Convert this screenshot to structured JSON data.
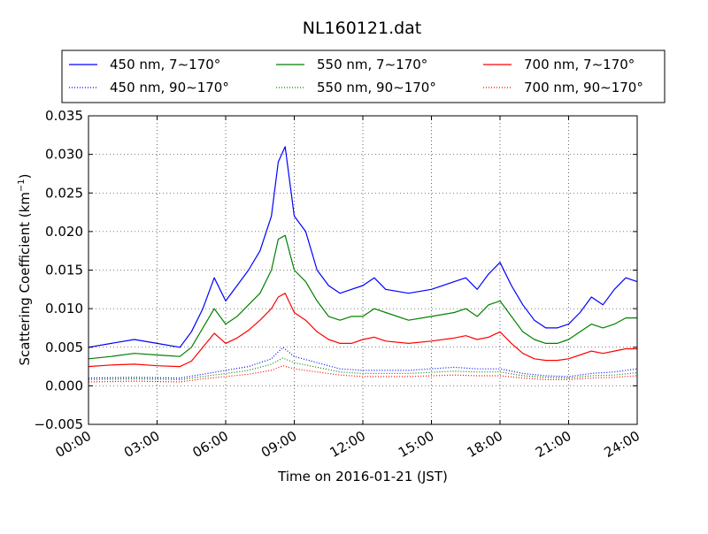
{
  "chart_data": {
    "type": "line",
    "title": "NL160121.dat",
    "xlabel": "Time on 2016-01-21 (JST)",
    "ylabel_main": "Scattering Coefficient (km",
    "ylabel_sup": "−1",
    "ylabel_close": ")",
    "xlim": [
      "2016-01-21 00:00",
      "2016-01-22 00:00"
    ],
    "ylim": [
      -0.005,
      0.035
    ],
    "grid": true,
    "legend_position": "top",
    "x_ticks": [
      {
        "hours": 0,
        "label": "00:00"
      },
      {
        "hours": 3,
        "label": "03:00"
      },
      {
        "hours": 6,
        "label": "06:00"
      },
      {
        "hours": 9,
        "label": "09:00"
      },
      {
        "hours": 12,
        "label": "12:00"
      },
      {
        "hours": 15,
        "label": "15:00"
      },
      {
        "hours": 18,
        "label": "18:00"
      },
      {
        "hours": 21,
        "label": "21:00"
      },
      {
        "hours": 24,
        "label": "24:00"
      }
    ],
    "y_ticks": [
      {
        "value": -0.005,
        "label": "−0.005"
      },
      {
        "value": 0.0,
        "label": "0.000"
      },
      {
        "value": 0.005,
        "label": "0.005"
      },
      {
        "value": 0.01,
        "label": "0.010"
      },
      {
        "value": 0.015,
        "label": "0.015"
      },
      {
        "value": 0.02,
        "label": "0.020"
      },
      {
        "value": 0.025,
        "label": "0.025"
      },
      {
        "value": 0.03,
        "label": "0.030"
      },
      {
        "value": 0.035,
        "label": "0.035"
      }
    ],
    "series": [
      {
        "name": "450 nm, 7∼170°",
        "color": "#0000ff",
        "style": "solid",
        "x": [
          0,
          1,
          2,
          3,
          4,
          4.5,
          5,
          5.5,
          6,
          6.5,
          7,
          7.5,
          8,
          8.3,
          8.6,
          9,
          9.5,
          10,
          10.5,
          11,
          11.5,
          12,
          12.5,
          13,
          14,
          15,
          16,
          16.5,
          17,
          17.5,
          18,
          18.5,
          19,
          19.5,
          20,
          20.5,
          21,
          21.5,
          22,
          22.5,
          23,
          23.5,
          24
        ],
        "y": [
          0.005,
          0.0055,
          0.006,
          0.0055,
          0.005,
          0.007,
          0.01,
          0.014,
          0.011,
          0.013,
          0.015,
          0.0175,
          0.022,
          0.029,
          0.031,
          0.022,
          0.02,
          0.015,
          0.013,
          0.012,
          0.0125,
          0.013,
          0.014,
          0.0125,
          0.012,
          0.0125,
          0.0135,
          0.014,
          0.0125,
          0.0145,
          0.016,
          0.013,
          0.0105,
          0.0085,
          0.0075,
          0.0075,
          0.008,
          0.0095,
          0.0115,
          0.0105,
          0.0125,
          0.014,
          0.0135
        ]
      },
      {
        "name": "550 nm, 7∼170°",
        "color": "#008000",
        "style": "solid",
        "x": [
          0,
          1,
          2,
          3,
          4,
          4.5,
          5,
          5.5,
          6,
          6.5,
          7,
          7.5,
          8,
          8.3,
          8.6,
          9,
          9.5,
          10,
          10.5,
          11,
          11.5,
          12,
          12.5,
          13,
          14,
          15,
          16,
          16.5,
          17,
          17.5,
          18,
          18.5,
          19,
          19.5,
          20,
          20.5,
          21,
          21.5,
          22,
          22.5,
          23,
          23.5,
          24
        ],
        "y": [
          0.0035,
          0.0038,
          0.0042,
          0.004,
          0.0038,
          0.005,
          0.0075,
          0.01,
          0.008,
          0.009,
          0.0105,
          0.012,
          0.015,
          0.019,
          0.0195,
          0.015,
          0.0135,
          0.011,
          0.009,
          0.0085,
          0.009,
          0.009,
          0.01,
          0.0095,
          0.0085,
          0.009,
          0.0095,
          0.01,
          0.009,
          0.0105,
          0.011,
          0.009,
          0.007,
          0.006,
          0.0055,
          0.0055,
          0.006,
          0.007,
          0.008,
          0.0075,
          0.008,
          0.0088,
          0.0088
        ]
      },
      {
        "name": "700 nm, 7∼170°",
        "color": "#ff0000",
        "style": "solid",
        "x": [
          0,
          1,
          2,
          3,
          4,
          4.5,
          5,
          5.5,
          6,
          6.5,
          7,
          7.5,
          8,
          8.3,
          8.6,
          9,
          9.5,
          10,
          10.5,
          11,
          11.5,
          12,
          12.5,
          13,
          14,
          15,
          16,
          16.5,
          17,
          17.5,
          18,
          18.5,
          19,
          19.5,
          20,
          20.5,
          21,
          21.5,
          22,
          22.5,
          23,
          23.5,
          24
        ],
        "y": [
          0.0025,
          0.0027,
          0.0028,
          0.0026,
          0.0025,
          0.0032,
          0.005,
          0.0068,
          0.0055,
          0.0062,
          0.0072,
          0.0085,
          0.01,
          0.0115,
          0.012,
          0.0095,
          0.0085,
          0.007,
          0.006,
          0.0055,
          0.0055,
          0.006,
          0.0063,
          0.0058,
          0.0055,
          0.0058,
          0.0062,
          0.0065,
          0.006,
          0.0063,
          0.007,
          0.0055,
          0.0042,
          0.0035,
          0.0033,
          0.0033,
          0.0035,
          0.004,
          0.0045,
          0.0042,
          0.0045,
          0.0048,
          0.0048
        ]
      },
      {
        "name": "450 nm, 90∼170°",
        "color": "#0000ff",
        "style": "dotted",
        "x": [
          0,
          2,
          4,
          5,
          6,
          7,
          8,
          8.5,
          9,
          10,
          11,
          12,
          14,
          16,
          17,
          18,
          19,
          20,
          21,
          22,
          23,
          24
        ],
        "y": [
          0.001,
          0.0011,
          0.001,
          0.0015,
          0.002,
          0.0025,
          0.0035,
          0.005,
          0.0038,
          0.003,
          0.0022,
          0.002,
          0.002,
          0.0024,
          0.0022,
          0.0022,
          0.0016,
          0.0013,
          0.0012,
          0.0016,
          0.0018,
          0.0022
        ]
      },
      {
        "name": "550 nm, 90∼170°",
        "color": "#008000",
        "style": "dotted",
        "x": [
          0,
          2,
          4,
          5,
          6,
          7,
          8,
          8.5,
          9,
          10,
          11,
          12,
          14,
          16,
          17,
          18,
          19,
          20,
          21,
          22,
          23,
          24
        ],
        "y": [
          0.0008,
          0.0009,
          0.0008,
          0.0012,
          0.0016,
          0.002,
          0.0028,
          0.0036,
          0.003,
          0.0024,
          0.0018,
          0.0016,
          0.0016,
          0.0019,
          0.0018,
          0.0018,
          0.0013,
          0.0011,
          0.001,
          0.0013,
          0.0014,
          0.0017
        ]
      },
      {
        "name": "700 nm, 90∼170°",
        "color": "#ff0000",
        "style": "dotted",
        "x": [
          0,
          2,
          4,
          5,
          6,
          7,
          8,
          8.5,
          9,
          10,
          11,
          12,
          14,
          16,
          17,
          18,
          19,
          20,
          21,
          22,
          23,
          24
        ],
        "y": [
          0.0005,
          0.0006,
          0.0005,
          0.0009,
          0.0012,
          0.0015,
          0.002,
          0.0026,
          0.0022,
          0.0018,
          0.0014,
          0.0012,
          0.0012,
          0.0014,
          0.0013,
          0.0013,
          0.001,
          0.0008,
          0.0008,
          0.001,
          0.0011,
          0.0013
        ]
      }
    ],
    "legend_order": [
      0,
      1,
      2,
      3,
      4,
      5
    ]
  }
}
